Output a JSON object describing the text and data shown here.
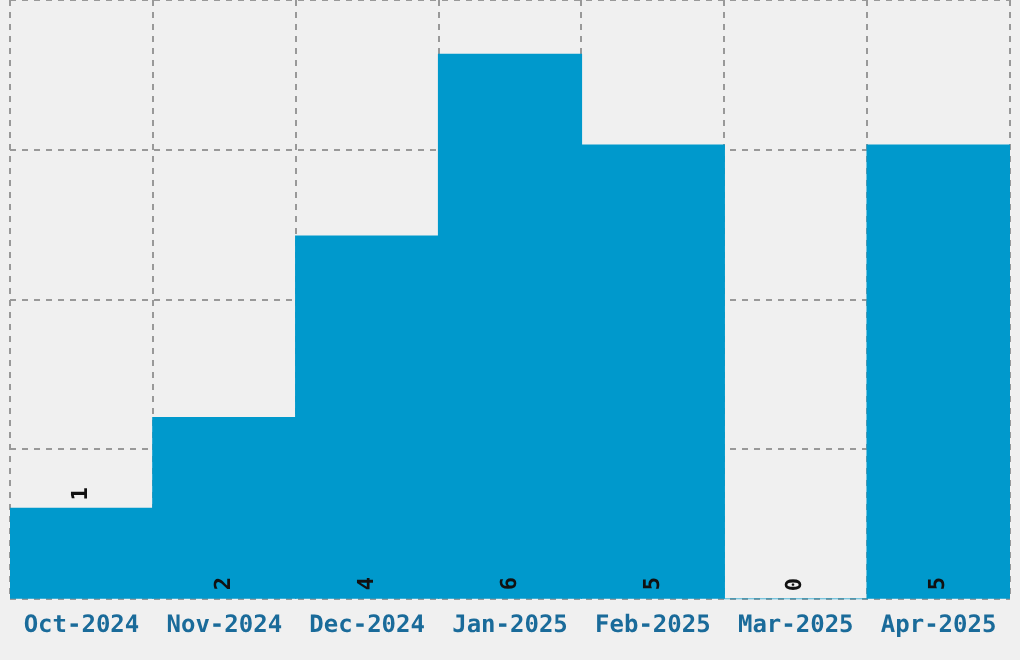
{
  "chart_data": {
    "type": "bar",
    "categories": [
      "Oct-2024",
      "Nov-2024",
      "Dec-2024",
      "Jan-2025",
      "Feb-2025",
      "Mar-2025",
      "Apr-2025"
    ],
    "values": [
      1,
      2,
      4,
      6,
      5,
      0,
      5
    ],
    "color": "#0099cc",
    "ylim": [
      0,
      6.6
    ],
    "yticks": [
      {
        "value": 0,
        "label": null
      },
      {
        "value": 1.65,
        "label": null
      },
      {
        "value": 3.3,
        "label": null
      },
      {
        "value": 4.95,
        "label": null
      },
      {
        "value": 6.6,
        "label": null
      }
    ],
    "grid": true,
    "data_labels": true,
    "tick_labels": "x"
  }
}
